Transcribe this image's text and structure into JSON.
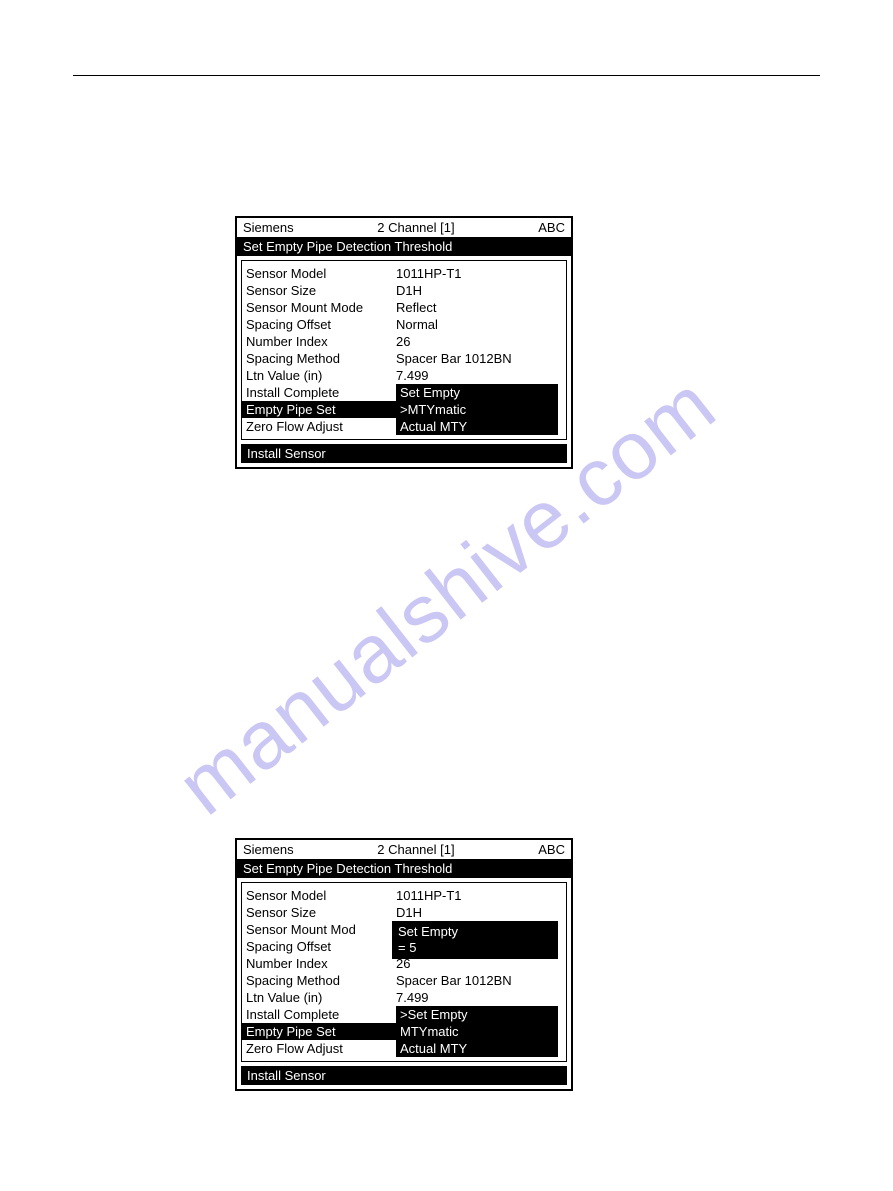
{
  "watermark_text": "manualshive.com",
  "screen1": {
    "header": {
      "left": "Siemens",
      "center": "2 Channel [1]",
      "right": "ABC"
    },
    "title": "Set Empty Pipe Detection Threshold",
    "rows": [
      {
        "label": "Sensor Model",
        "value": "1011HP-T1",
        "highlighted": false,
        "value_inverted": false
      },
      {
        "label": "Sensor Size",
        "value": "D1H",
        "highlighted": false,
        "value_inverted": false
      },
      {
        "label": "Sensor Mount Mode",
        "value": "Reflect",
        "highlighted": false,
        "value_inverted": false
      },
      {
        "label": "Spacing Offset",
        "value": "Normal",
        "highlighted": false,
        "value_inverted": false
      },
      {
        "label": "Number Index",
        "value": "26",
        "highlighted": false,
        "value_inverted": false
      },
      {
        "label": "Spacing Method",
        "value": "Spacer Bar 1012BN",
        "highlighted": false,
        "value_inverted": false
      },
      {
        "label": "Ltn Value (in)",
        "value": "7.499",
        "highlighted": false,
        "value_inverted": false
      },
      {
        "label": "Install Complete",
        "value": "Set Empty",
        "highlighted": false,
        "value_inverted": true
      },
      {
        "label": "Empty Pipe Set",
        "value": ">MTYmatic",
        "highlighted": true,
        "value_inverted": true
      },
      {
        "label": "Zero Flow Adjust",
        "value": "Actual MTY",
        "highlighted": false,
        "value_inverted": true
      }
    ],
    "footer": "Install Sensor"
  },
  "screen2": {
    "header": {
      "left": "Siemens",
      "center": "2 Channel [1]",
      "right": "ABC"
    },
    "title": "Set Empty Pipe Detection Threshold",
    "rows": [
      {
        "label": "Sensor Model",
        "value": "1011HP-T1",
        "highlighted": false,
        "value_inverted": false
      },
      {
        "label": "Sensor Size",
        "value": "D1H",
        "highlighted": false,
        "value_inverted": false
      },
      {
        "label": "Sensor Mount Mod",
        "value": "",
        "highlighted": false,
        "value_inverted": false
      },
      {
        "label": "Spacing Offset",
        "value": "",
        "highlighted": false,
        "value_inverted": false
      },
      {
        "label": "Number Index",
        "value": "26",
        "highlighted": false,
        "value_inverted": false
      },
      {
        "label": "Spacing Method",
        "value": "Spacer Bar 1012BN",
        "highlighted": false,
        "value_inverted": false
      },
      {
        "label": "Ltn Value (in)",
        "value": "7.499",
        "highlighted": false,
        "value_inverted": false
      },
      {
        "label": "Install Complete",
        "value": ">Set Empty",
        "highlighted": false,
        "value_inverted": true
      },
      {
        "label": "Empty Pipe Set",
        "value": "MTYmatic",
        "highlighted": true,
        "value_inverted": true
      },
      {
        "label": "Zero Flow Adjust",
        "value": "Actual MTY",
        "highlighted": false,
        "value_inverted": true
      }
    ],
    "popup": {
      "line1": "Set Empty",
      "line2": "= 5"
    },
    "footer": "Install Sensor"
  },
  "colors": {
    "black": "#000000",
    "white": "#ffffff",
    "watermark": "rgba(140, 130, 230, 0.45)"
  }
}
